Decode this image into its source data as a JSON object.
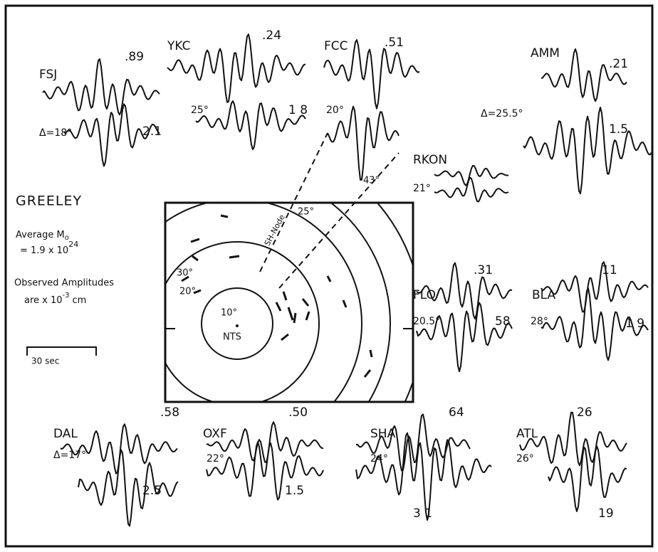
{
  "figure": {
    "title": "GREELEY",
    "moment": {
      "label": "Average M",
      "subscript": "o",
      "value": "= 1.9 x 10",
      "exponent": "24"
    },
    "amplitudes": {
      "line1": "Observed Amplitudes",
      "line2": "are x 10",
      "exponent": "-3",
      "unit": "cm"
    },
    "scale_bar": "30 sec",
    "map": {
      "inner": "10°",
      "center": "NTS",
      "ring2": "20°",
      "ring3": "30°",
      "node": "SH-Node",
      "fcc_takeoff": "25°",
      "rkon_takeoff": "43°"
    },
    "stations": [
      {
        "name": "FSJ",
        "observed": ".89",
        "synthetic": "2.1",
        "distance": "Δ=18°"
      },
      {
        "name": "YKC",
        "observed": ".24",
        "synthetic": "1 8",
        "distance": "25°"
      },
      {
        "name": "FCC",
        "observed": ".51",
        "distance": "20°"
      },
      {
        "name": "AMM",
        "observed": ".21",
        "synthetic": "1.5",
        "distance": "Δ=25.5°"
      },
      {
        "name": "RKON",
        "distance": "21°"
      },
      {
        "name": "FLO",
        "observed": ".31",
        "synthetic": "58",
        "distance": "20.5°"
      },
      {
        "name": "BLA",
        "observed": "11",
        "synthetic": "1 9",
        "distance": "28°"
      },
      {
        "name": "DAL",
        "observed": ".58",
        "synthetic": "2.5",
        "distance": "Δ=17°"
      },
      {
        "name": "OXF",
        "observed": ".50",
        "synthetic": "1.5",
        "distance": "22°"
      },
      {
        "name": "SHA",
        "observed": "64",
        "synthetic": "3 1",
        "distance": "24°"
      },
      {
        "name": "ATL",
        "observed": "26",
        "synthetic": "19",
        "distance": "26°"
      }
    ]
  }
}
